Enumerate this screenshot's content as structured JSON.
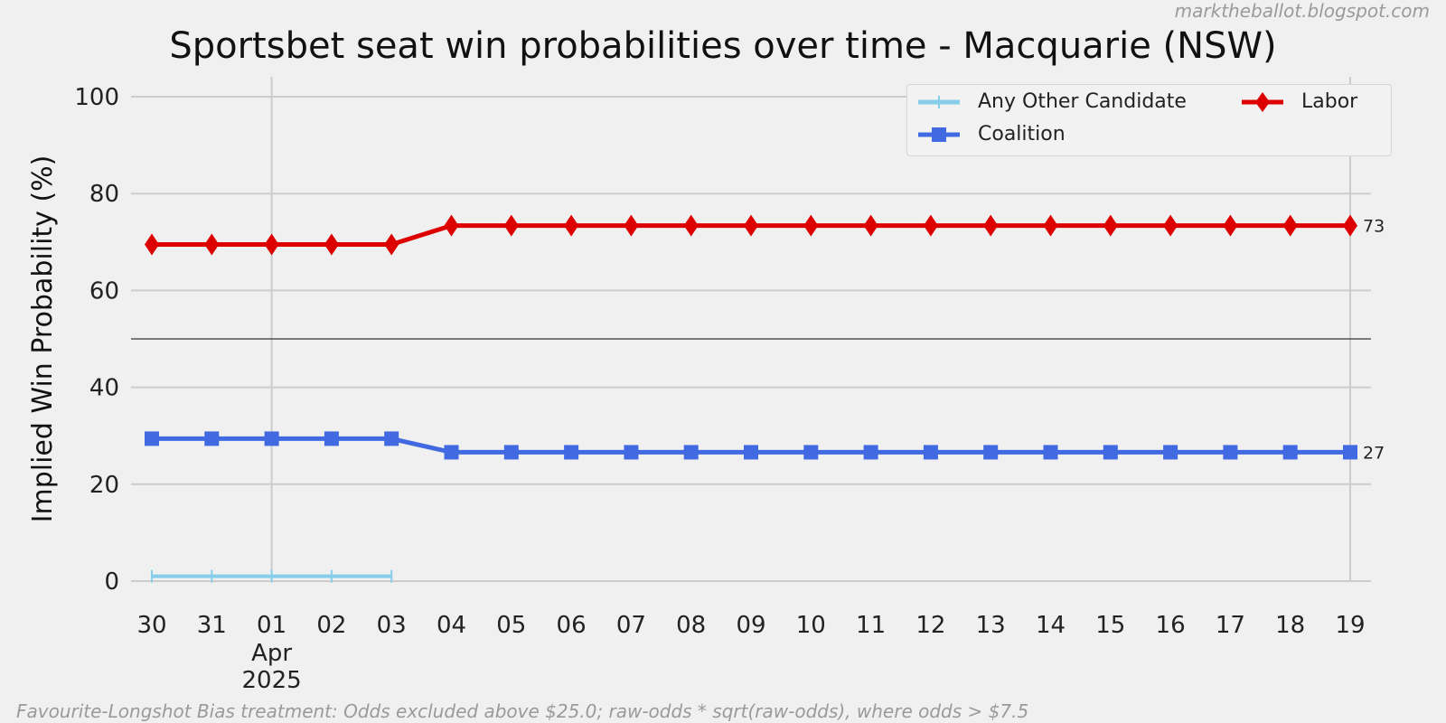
{
  "watermark": "marktheballot.blogspot.com",
  "footnote": "Favourite-Longshot Bias treatment: Odds excluded above $25.0; raw-odds * sqrt(raw-odds), where odds > $7.5",
  "colors": {
    "background": "#f0f0f0",
    "grid": "#cccccc",
    "reference_line": "#333333"
  },
  "chart_data": {
    "type": "line",
    "title": "Sportsbet seat win probabilities over time - Macquarie (NSW)",
    "xlabel": "",
    "ylabel": "Implied Win Probability (%)",
    "ylim": [
      0,
      100
    ],
    "yticks": [
      0,
      20,
      40,
      60,
      80,
      100
    ],
    "x": [
      "2025-03-30",
      "2025-03-31",
      "2025-04-01",
      "2025-04-02",
      "2025-04-03",
      "2025-04-04",
      "2025-04-05",
      "2025-04-06",
      "2025-04-07",
      "2025-04-08",
      "2025-04-09",
      "2025-04-10",
      "2025-04-11",
      "2025-04-12",
      "2025-04-13",
      "2025-04-14",
      "2025-04-15",
      "2025-04-16",
      "2025-04-17",
      "2025-04-18",
      "2025-04-19"
    ],
    "xtick_labels": [
      "30",
      "31",
      "01",
      "02",
      "03",
      "04",
      "05",
      "06",
      "07",
      "08",
      "09",
      "10",
      "11",
      "12",
      "13",
      "14",
      "15",
      "16",
      "17",
      "18",
      "19"
    ],
    "xtick_sublabel": {
      "at": "2025-04-01",
      "lines": [
        "Apr",
        "2025"
      ]
    },
    "reference_line_y": 50,
    "grid": true,
    "legend_position": "top-right",
    "series": [
      {
        "name": "Any Other Candidate",
        "color": "#87ceeb",
        "marker": "plus",
        "values": [
          1,
          1,
          1,
          1,
          1,
          null,
          null,
          null,
          null,
          null,
          null,
          null,
          null,
          null,
          null,
          null,
          null,
          null,
          null,
          null,
          null
        ]
      },
      {
        "name": "Labor",
        "color": "#dd0000",
        "marker": "diamond",
        "values": [
          69.5,
          69.5,
          69.5,
          69.5,
          69.5,
          73.4,
          73.4,
          73.4,
          73.4,
          73.4,
          73.4,
          73.4,
          73.4,
          73.4,
          73.4,
          73.4,
          73.4,
          73.4,
          73.4,
          73.4,
          73.4
        ],
        "end_label": "73"
      },
      {
        "name": "Coalition",
        "color": "#4169e1",
        "marker": "square",
        "values": [
          29.4,
          29.4,
          29.4,
          29.4,
          29.4,
          26.6,
          26.6,
          26.6,
          26.6,
          26.6,
          26.6,
          26.6,
          26.6,
          26.6,
          26.6,
          26.6,
          26.6,
          26.6,
          26.6,
          26.6,
          26.6
        ],
        "end_label": "27"
      }
    ]
  }
}
